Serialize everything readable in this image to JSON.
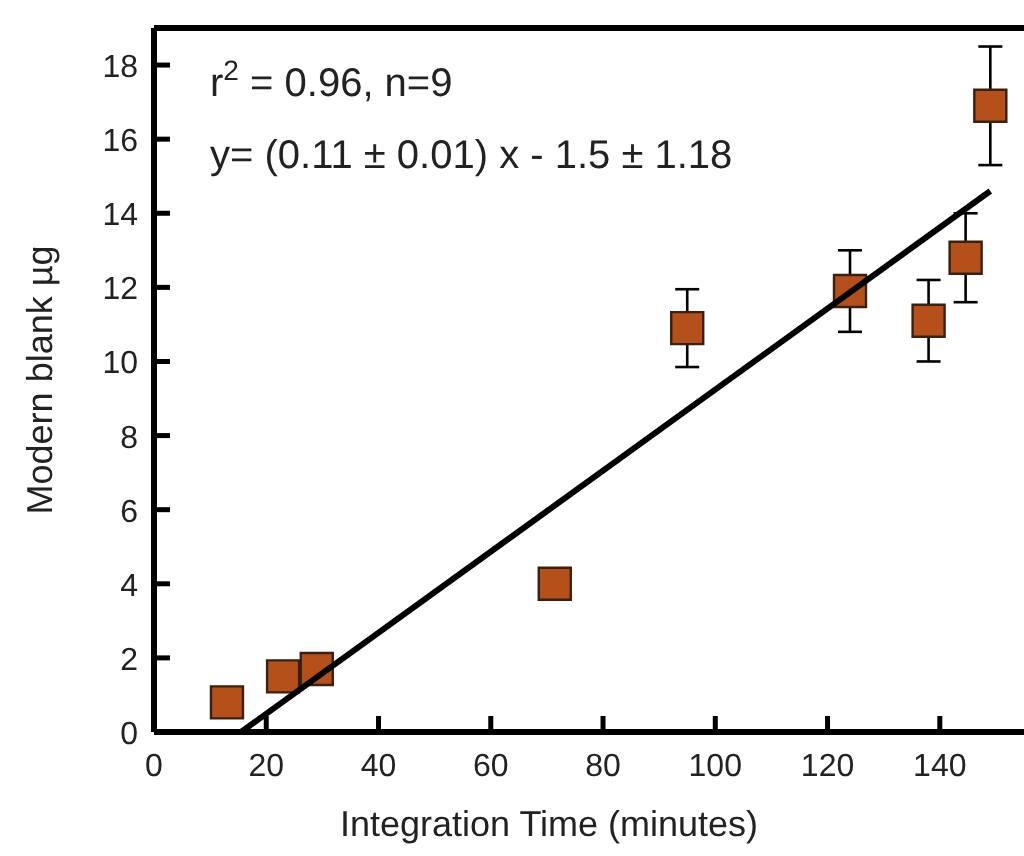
{
  "chart_data": {
    "type": "scatter",
    "xlabel": "Integration Time (minutes)",
    "ylabel": "Modern blank µg",
    "annotations": [
      "r$^{2}$ = 0.96, n=9",
      "y= (0.11 ± 0.01) x - 1.5 ± 1.18"
    ],
    "xlim": [
      0,
      155
    ],
    "ylim": [
      0,
      19
    ],
    "xticks": [
      0,
      20,
      40,
      60,
      80,
      100,
      120,
      140
    ],
    "yticks": [
      0,
      2,
      4,
      6,
      8,
      10,
      12,
      14,
      16,
      18
    ],
    "grid": false,
    "series": [
      {
        "color": "#b5501a",
        "marker": "square",
        "x": [
          13,
          23,
          29,
          71.4,
          95,
          124,
          138,
          144.6,
          149
        ],
        "values": [
          0.8,
          1.5,
          1.7,
          4.0,
          10.9,
          11.9,
          11.1,
          12.8,
          16.9
        ],
        "errors": [
          null,
          null,
          null,
          null,
          1.05,
          1.1,
          1.1,
          1.2,
          1.6
        ]
      },
      {
        "type": "line",
        "color": "#000000",
        "line_style": "solid",
        "x": [
          15.5,
          149
        ],
        "values": [
          0,
          14.6
        ]
      }
    ]
  }
}
